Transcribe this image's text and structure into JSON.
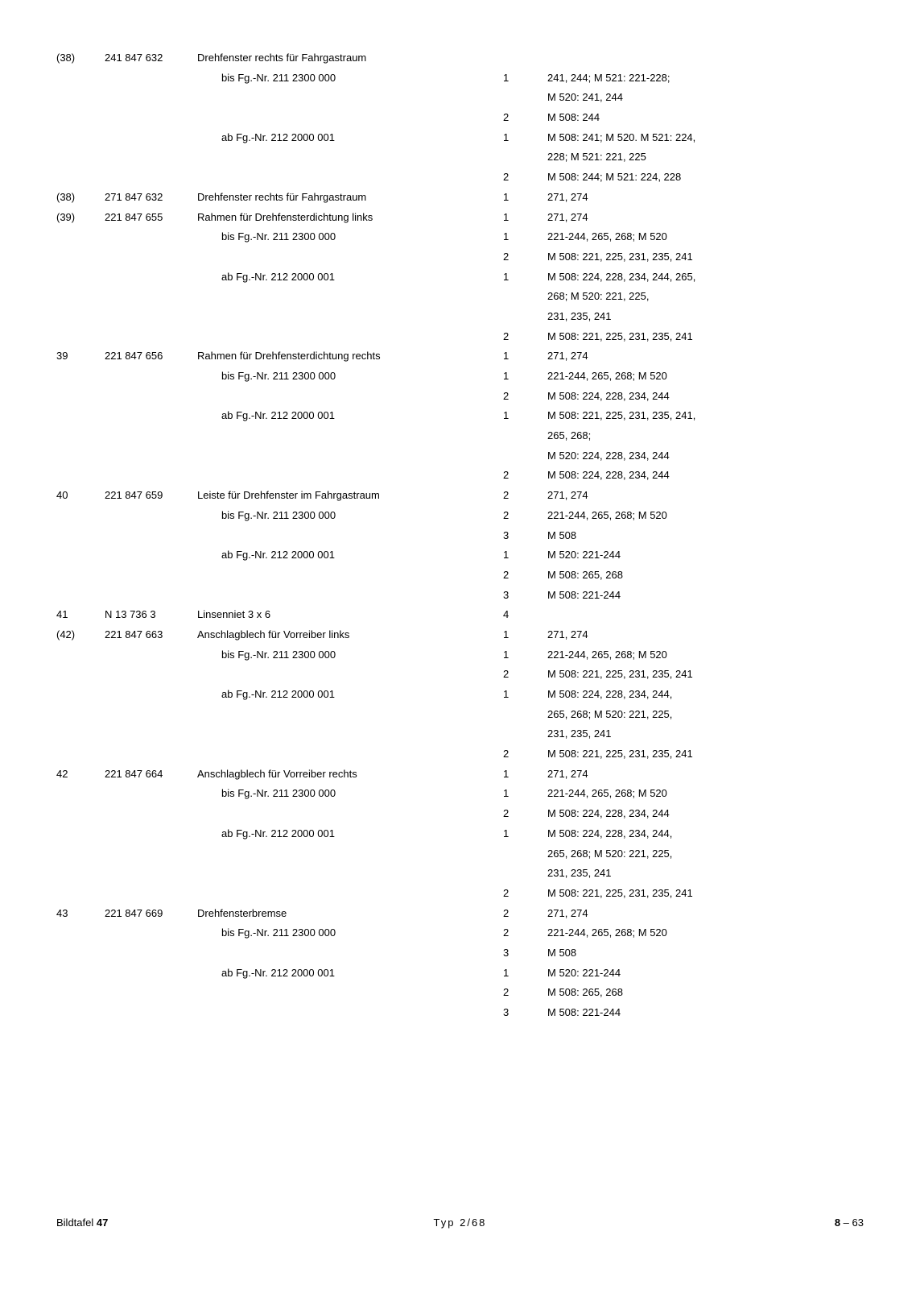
{
  "rows": [
    {
      "pos": "(38)",
      "partno": "241 847 632",
      "desc": "Drehfenster rechts für Fahrgastraum",
      "descIndent": false,
      "qty": "",
      "notes": ""
    },
    {
      "pos": "",
      "partno": "",
      "desc": "bis Fg.-Nr. 211 2300 000",
      "descIndent": true,
      "qty": "1",
      "notes": "241, 244; M 521: 221-228;"
    },
    {
      "pos": "",
      "partno": "",
      "desc": "",
      "descIndent": false,
      "qty": "",
      "notes": "M 520: 241, 244"
    },
    {
      "pos": "",
      "partno": "",
      "desc": "",
      "descIndent": false,
      "qty": "2",
      "notes": "M 508: 244"
    },
    {
      "pos": "",
      "partno": "",
      "desc": "ab Fg.-Nr. 212 2000 001",
      "descIndent": true,
      "qty": "1",
      "notes": "M 508: 241; M 520. M 521: 224,"
    },
    {
      "pos": "",
      "partno": "",
      "desc": "",
      "descIndent": false,
      "qty": "",
      "notes": "228; M 521: 221, 225"
    },
    {
      "pos": "",
      "partno": "",
      "desc": "",
      "descIndent": false,
      "qty": "2",
      "notes": "M 508: 244; M 521: 224, 228"
    },
    {
      "pos": "(38)",
      "partno": "271 847 632",
      "desc": "Drehfenster rechts für Fahrgastraum",
      "descIndent": false,
      "qty": "1",
      "notes": "271, 274"
    },
    {
      "pos": "(39)",
      "partno": "221 847 655",
      "desc": "Rahmen für Drehfensterdichtung links",
      "descIndent": false,
      "qty": "1",
      "notes": "271, 274"
    },
    {
      "pos": "",
      "partno": "",
      "desc": "bis Fg.-Nr. 211 2300 000",
      "descIndent": true,
      "qty": "1",
      "notes": "221-244, 265, 268; M 520"
    },
    {
      "pos": "",
      "partno": "",
      "desc": "",
      "descIndent": false,
      "qty": "2",
      "notes": "M 508: 221, 225, 231, 235, 241"
    },
    {
      "pos": "",
      "partno": "",
      "desc": "ab Fg.-Nr. 212 2000 001",
      "descIndent": true,
      "qty": "1",
      "notes": "M 508: 224, 228, 234, 244, 265,"
    },
    {
      "pos": "",
      "partno": "",
      "desc": "",
      "descIndent": false,
      "qty": "",
      "notes": "268; M 520: 221, 225,"
    },
    {
      "pos": "",
      "partno": "",
      "desc": "",
      "descIndent": false,
      "qty": "",
      "notes": "231, 235, 241"
    },
    {
      "pos": "",
      "partno": "",
      "desc": "",
      "descIndent": false,
      "qty": "2",
      "notes": "M 508: 221, 225, 231, 235, 241"
    },
    {
      "pos": "39",
      "partno": "221 847 656",
      "desc": "Rahmen für Drehfensterdichtung rechts",
      "descIndent": false,
      "qty": "1",
      "notes": "271, 274"
    },
    {
      "pos": "",
      "partno": "",
      "desc": "bis Fg.-Nr. 211 2300 000",
      "descIndent": true,
      "qty": "1",
      "notes": "221-244, 265, 268; M 520"
    },
    {
      "pos": "",
      "partno": "",
      "desc": "",
      "descIndent": false,
      "qty": "2",
      "notes": "M 508: 224, 228, 234, 244"
    },
    {
      "pos": "",
      "partno": "",
      "desc": "ab Fg.-Nr. 212 2000 001",
      "descIndent": true,
      "qty": "1",
      "notes": "M 508: 221, 225, 231, 235, 241,"
    },
    {
      "pos": "",
      "partno": "",
      "desc": "",
      "descIndent": false,
      "qty": "",
      "notes": "265, 268;"
    },
    {
      "pos": "",
      "partno": "",
      "desc": "",
      "descIndent": false,
      "qty": "",
      "notes": "M 520: 224, 228, 234, 244"
    },
    {
      "pos": "",
      "partno": "",
      "desc": "",
      "descIndent": false,
      "qty": "2",
      "notes": "M 508: 224, 228, 234, 244"
    },
    {
      "pos": "40",
      "partno": "221 847 659",
      "desc": "Leiste für Drehfenster im Fahrgastraum",
      "descIndent": false,
      "qty": "2",
      "notes": "271, 274"
    },
    {
      "pos": "",
      "partno": "",
      "desc": "bis Fg.-Nr. 211 2300 000",
      "descIndent": true,
      "qty": "2",
      "notes": "221-244, 265, 268; M 520"
    },
    {
      "pos": "",
      "partno": "",
      "desc": "",
      "descIndent": false,
      "qty": "3",
      "notes": "M 508"
    },
    {
      "pos": "",
      "partno": "",
      "desc": "ab Fg.-Nr. 212 2000 001",
      "descIndent": true,
      "qty": "1",
      "notes": "M 520: 221-244"
    },
    {
      "pos": "",
      "partno": "",
      "desc": "",
      "descIndent": false,
      "qty": "2",
      "notes": "M 508: 265, 268"
    },
    {
      "pos": "",
      "partno": "",
      "desc": "",
      "descIndent": false,
      "qty": "3",
      "notes": "M 508: 221-244"
    },
    {
      "pos": "41",
      "partno": "N 13 736 3",
      "desc": "Linsenniet 3 x 6",
      "descIndent": false,
      "qty": "4",
      "notes": ""
    },
    {
      "pos": "(42)",
      "partno": "221 847 663",
      "desc": "Anschlagblech für Vorreiber links",
      "descIndent": false,
      "qty": "1",
      "notes": "271, 274"
    },
    {
      "pos": "",
      "partno": "",
      "desc": "bis Fg.-Nr. 211 2300 000",
      "descIndent": true,
      "qty": "1",
      "notes": "221-244, 265, 268; M 520"
    },
    {
      "pos": "",
      "partno": "",
      "desc": "",
      "descIndent": false,
      "qty": "2",
      "notes": "M 508: 221, 225, 231, 235, 241"
    },
    {
      "pos": "",
      "partno": "",
      "desc": "ab Fg.-Nr. 212 2000 001",
      "descIndent": true,
      "qty": "1",
      "notes": "M 508: 224, 228, 234, 244,"
    },
    {
      "pos": "",
      "partno": "",
      "desc": "",
      "descIndent": false,
      "qty": "",
      "notes": "265, 268; M 520: 221, 225,"
    },
    {
      "pos": "",
      "partno": "",
      "desc": "",
      "descIndent": false,
      "qty": "",
      "notes": "231, 235, 241"
    },
    {
      "pos": "",
      "partno": "",
      "desc": "",
      "descIndent": false,
      "qty": "2",
      "notes": "M 508: 221, 225, 231, 235, 241"
    },
    {
      "pos": "42",
      "partno": "221 847 664",
      "desc": "Anschlagblech für Vorreiber rechts",
      "descIndent": false,
      "qty": "1",
      "notes": "271, 274"
    },
    {
      "pos": "",
      "partno": "",
      "desc": "bis Fg.-Nr. 211 2300 000",
      "descIndent": true,
      "qty": "1",
      "notes": "221-244, 265, 268; M 520"
    },
    {
      "pos": "",
      "partno": "",
      "desc": "",
      "descIndent": false,
      "qty": "2",
      "notes": "M 508: 224, 228, 234, 244"
    },
    {
      "pos": "",
      "partno": "",
      "desc": "ab Fg.-Nr. 212 2000 001",
      "descIndent": true,
      "qty": "1",
      "notes": "M 508: 224, 228, 234, 244,"
    },
    {
      "pos": "",
      "partno": "",
      "desc": "",
      "descIndent": false,
      "qty": "",
      "notes": "265, 268; M 520: 221, 225,"
    },
    {
      "pos": "",
      "partno": "",
      "desc": "",
      "descIndent": false,
      "qty": "",
      "notes": "231, 235, 241"
    },
    {
      "pos": "",
      "partno": "",
      "desc": "",
      "descIndent": false,
      "qty": "2",
      "notes": "M 508: 221, 225, 231, 235, 241"
    },
    {
      "pos": "43",
      "partno": "221 847 669",
      "desc": "Drehfensterbremse",
      "descIndent": false,
      "qty": "2",
      "notes": "271, 274"
    },
    {
      "pos": "",
      "partno": "",
      "desc": "bis Fg.-Nr. 211 2300 000",
      "descIndent": true,
      "qty": "2",
      "notes": "221-244, 265, 268; M 520"
    },
    {
      "pos": "",
      "partno": "",
      "desc": "",
      "descIndent": false,
      "qty": "3",
      "notes": "M 508"
    },
    {
      "pos": "",
      "partno": "",
      "desc": "ab Fg.-Nr. 212 2000 001",
      "descIndent": true,
      "qty": "1",
      "notes": "M 520: 221-244"
    },
    {
      "pos": "",
      "partno": "",
      "desc": "",
      "descIndent": false,
      "qty": "2",
      "notes": "M 508: 265, 268"
    },
    {
      "pos": "",
      "partno": "",
      "desc": "",
      "descIndent": false,
      "qty": "3",
      "notes": "M 508: 221-244"
    }
  ],
  "footer": {
    "left_prefix": "Bildtafel ",
    "left_bold": "47",
    "center": "Typ 2/68",
    "right_prefix": "8",
    "right_suffix": " – 63"
  }
}
